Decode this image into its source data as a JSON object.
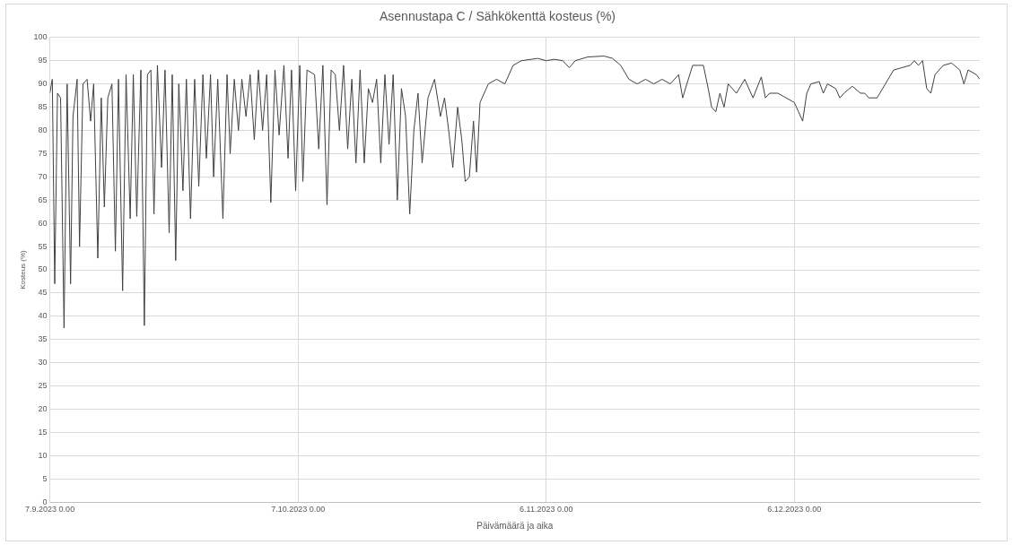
{
  "chart_data": {
    "type": "line",
    "title": "Asennustapa C / Sähkökenttä kosteus (%)",
    "xlabel": "Päivämäärä ja aika",
    "ylabel": "Kosteus (%)",
    "xlim": [
      "2023-09-07T00:00",
      "2023-12-28T10:00"
    ],
    "xticks": [
      {
        "value": "2023-09-07T00:00",
        "label": "7.9.2023 0.00"
      },
      {
        "value": "2023-10-07T00:00",
        "label": "7.10.2023 0.00"
      },
      {
        "value": "2023-11-06T00:00",
        "label": "6.11.2023 0.00"
      },
      {
        "value": "2023-12-06T00:00",
        "label": "6.12.2023 0.00"
      }
    ],
    "ylim": [
      0,
      100
    ],
    "yticks": [
      0,
      5,
      10,
      15,
      20,
      25,
      30,
      35,
      40,
      45,
      50,
      55,
      60,
      65,
      70,
      75,
      80,
      85,
      90,
      95,
      100
    ],
    "grid": true,
    "legend": false,
    "marker": "none",
    "line_style": "solid",
    "series": [
      {
        "color": "#404040",
        "x": [
          "2023-09-07T00:00",
          "2023-09-07T07:00",
          "2023-09-07T14:00",
          "2023-09-07T22:00",
          "2023-09-08T07:00",
          "2023-09-08T17:00",
          "2023-09-09T02:00",
          "2023-09-09T12:00",
          "2023-09-09T19:00",
          "2023-09-10T07:00",
          "2023-09-10T14:00",
          "2023-09-11T00:00",
          "2023-09-11T12:00",
          "2023-09-11T22:00",
          "2023-09-12T07:00",
          "2023-09-12T19:00",
          "2023-09-13T05:00",
          "2023-09-13T14:00",
          "2023-09-14T00:00",
          "2023-09-14T12:00",
          "2023-09-14T22:00",
          "2023-09-15T07:00",
          "2023-09-15T19:00",
          "2023-09-16T05:00",
          "2023-09-16T17:00",
          "2023-09-17T02:00",
          "2023-09-17T12:00",
          "2023-09-18T00:00",
          "2023-09-18T10:00",
          "2023-09-18T19:00",
          "2023-09-19T05:00",
          "2023-09-19T14:00",
          "2023-09-20T00:00",
          "2023-09-20T12:00",
          "2023-09-20T22:00",
          "2023-09-21T10:00",
          "2023-09-21T19:00",
          "2023-09-22T05:00",
          "2023-09-22T14:00",
          "2023-09-23T02:00",
          "2023-09-23T12:00",
          "2023-09-24T00:00",
          "2023-09-24T12:00",
          "2023-09-25T00:00",
          "2023-09-25T12:00",
          "2023-09-25T22:00",
          "2023-09-26T10:00",
          "2023-09-26T19:00",
          "2023-09-27T07:00",
          "2023-09-27T22:00",
          "2023-09-28T10:00",
          "2023-09-28T19:00",
          "2023-09-29T07:00",
          "2023-09-29T19:00",
          "2023-09-30T05:00",
          "2023-09-30T17:00",
          "2023-10-01T05:00",
          "2023-10-01T17:00",
          "2023-10-02T05:00",
          "2023-10-02T17:00",
          "2023-10-03T05:00",
          "2023-10-03T17:00",
          "2023-10-04T05:00",
          "2023-10-04T17:00",
          "2023-10-05T07:00",
          "2023-10-05T19:00",
          "2023-10-06T05:00",
          "2023-10-06T17:00",
          "2023-10-07T05:00",
          "2023-10-07T14:00",
          "2023-10-08T02:00",
          "2023-10-09T00:00",
          "2023-10-09T12:00",
          "2023-10-10T00:00",
          "2023-10-10T12:00",
          "2023-10-11T00:00",
          "2023-10-11T12:00",
          "2023-10-12T00:00",
          "2023-10-12T12:00",
          "2023-10-13T00:00",
          "2023-10-13T12:00",
          "2023-10-14T00:00",
          "2023-10-14T12:00",
          "2023-10-15T00:00",
          "2023-10-15T12:00",
          "2023-10-16T00:00",
          "2023-10-16T12:00",
          "2023-10-17T00:00",
          "2023-10-17T12:00",
          "2023-10-18T00:00",
          "2023-10-18T12:00",
          "2023-10-19T00:00",
          "2023-10-19T12:00",
          "2023-10-20T00:00",
          "2023-10-20T12:00",
          "2023-10-21T00:00",
          "2023-10-21T12:00",
          "2023-10-22T00:00",
          "2023-10-22T17:00",
          "2023-10-23T12:00",
          "2023-10-24T05:00",
          "2023-10-24T17:00",
          "2023-10-25T05:00",
          "2023-10-25T17:00",
          "2023-10-26T07:00",
          "2023-10-26T19:00",
          "2023-10-27T05:00",
          "2023-10-27T17:00",
          "2023-10-28T05:00",
          "2023-10-28T14:00",
          "2023-10-29T00:00",
          "2023-10-30T00:00",
          "2023-10-31T00:00",
          "2023-11-01T00:00",
          "2023-11-02T00:00",
          "2023-11-03T00:00",
          "2023-11-05T00:00",
          "2023-11-06T00:00",
          "2023-11-07T00:00",
          "2023-11-08T00:00",
          "2023-11-08T19:00",
          "2023-11-09T12:00",
          "2023-11-11T00:00",
          "2023-11-13T00:00",
          "2023-11-14T00:00",
          "2023-11-15T00:00",
          "2023-11-16T00:00",
          "2023-11-17T00:00",
          "2023-11-18T00:00",
          "2023-11-19T00:00",
          "2023-11-20T00:00",
          "2023-11-21T00:00",
          "2023-11-22T00:00",
          "2023-11-22T12:00",
          "2023-11-23T00:00",
          "2023-11-23T17:00",
          "2023-11-25T00:00",
          "2023-11-25T14:00",
          "2023-11-26T00:00",
          "2023-11-26T12:00",
          "2023-11-27T00:00",
          "2023-11-27T12:00",
          "2023-11-28T00:00",
          "2023-11-29T00:00",
          "2023-11-30T00:00",
          "2023-12-01T00:00",
          "2023-12-02T00:00",
          "2023-12-02T12:00",
          "2023-12-03T00:00",
          "2023-12-04T00:00",
          "2023-12-05T00:00",
          "2023-12-06T00:00",
          "2023-12-06T12:00",
          "2023-12-07T00:00",
          "2023-12-07T12:00",
          "2023-12-08T00:00",
          "2023-12-09T00:00",
          "2023-12-09T12:00",
          "2023-12-10T00:00",
          "2023-12-11T00:00",
          "2023-12-11T12:00",
          "2023-12-12T00:00",
          "2023-12-13T00:00",
          "2023-12-14T00:00",
          "2023-12-14T12:00",
          "2023-12-15T00:00",
          "2023-12-16T00:00",
          "2023-12-17T00:00",
          "2023-12-18T00:00",
          "2023-12-19T00:00",
          "2023-12-20T00:00",
          "2023-12-20T12:00",
          "2023-12-21T00:00",
          "2023-12-21T12:00",
          "2023-12-22T00:00",
          "2023-12-22T12:00",
          "2023-12-23T00:00",
          "2023-12-24T00:00",
          "2023-12-25T00:00",
          "2023-12-26T00:00",
          "2023-12-26T12:00",
          "2023-12-27T00:00",
          "2023-12-28T00:00",
          "2023-12-28T10:00"
        ],
        "values": [
          88,
          91,
          47,
          88,
          87,
          37.5,
          90,
          47,
          83,
          91,
          55,
          90,
          91,
          82,
          90,
          52.5,
          87,
          63.5,
          87,
          90,
          54,
          91,
          45.5,
          92,
          61,
          92,
          61.5,
          93,
          38,
          92,
          93,
          62,
          94,
          72,
          93,
          58,
          92,
          52,
          90,
          67,
          91,
          61,
          91,
          68,
          92,
          74,
          92,
          70,
          91,
          61,
          92,
          75,
          91,
          80,
          91,
          83,
          92,
          78,
          93,
          80,
          92,
          64.5,
          93,
          79,
          94,
          74,
          93,
          67,
          94,
          69,
          93,
          92,
          76,
          94,
          64,
          93,
          92,
          80,
          94,
          76,
          91,
          73,
          93,
          73,
          89,
          86,
          91,
          73,
          92,
          77,
          92,
          65,
          89,
          83,
          62,
          80,
          88,
          73,
          87,
          91,
          83,
          87,
          80,
          72,
          85,
          78,
          69,
          70,
          82,
          71,
          86,
          90,
          91,
          90,
          94,
          95,
          95.5,
          95,
          95.3,
          95,
          93.5,
          95,
          95.8,
          96,
          95.5,
          94,
          91,
          90,
          91,
          90,
          91,
          90,
          92,
          87,
          90,
          94,
          94,
          89,
          85,
          84,
          88,
          85,
          90,
          88,
          91,
          87,
          91.5,
          87,
          88,
          88,
          87,
          86,
          84,
          82,
          88,
          90,
          90.5,
          88,
          90,
          89,
          87,
          88,
          89.5,
          88,
          88,
          87,
          87,
          90,
          93,
          93.5,
          94,
          95,
          94,
          95,
          89,
          88,
          92,
          94,
          94.5,
          93,
          90,
          93,
          92,
          91
        ]
      }
    ]
  }
}
